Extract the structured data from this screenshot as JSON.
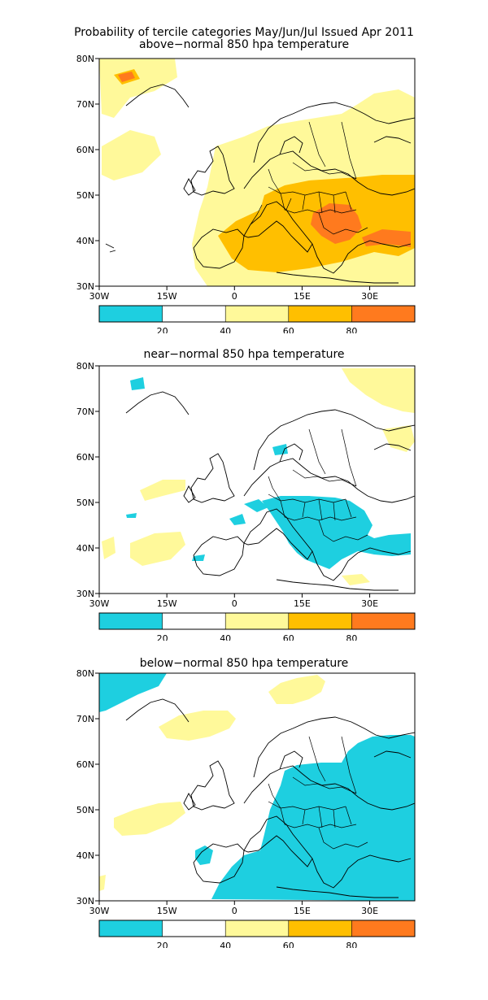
{
  "header": {
    "line1": "Probability of tercile categories May/Jun/Jul Issued Apr 2011",
    "line2": "above−normal 850 hpa temperature"
  },
  "panels": [
    {
      "title": "above−normal 850 hpa temperature"
    },
    {
      "title": "near−normal 850 hpa temperature"
    },
    {
      "title": "below−normal 850 hpa temperature"
    }
  ],
  "axes": {
    "lat_labels": [
      "80N",
      "70N",
      "60N",
      "50N",
      "40N",
      "30N"
    ],
    "lon_labels": [
      "30W",
      "15W",
      "0",
      "15E",
      "30E"
    ]
  },
  "colorbar": {
    "colors": [
      "#1ecfe0",
      "#ffffff",
      "#fff99a",
      "#ffbf00",
      "#ff7a1e"
    ],
    "labels": [
      "20",
      "40",
      "60",
      "80"
    ]
  }
}
